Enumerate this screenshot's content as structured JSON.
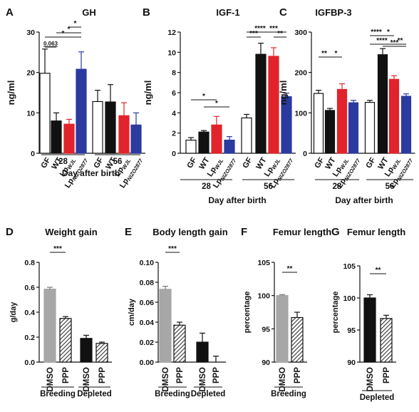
{
  "colors": {
    "white": "#ffffff",
    "black": "#111111",
    "red": "#e2232b",
    "blue": "#2b3a9f",
    "gray": "#a7a7a7",
    "err_red": "#e2232b",
    "err_blue": "#2b3a9f"
  },
  "legend_text": {
    "gf": "GF",
    "wt": "WT",
    "lp": "Lp",
    "wjl": "WJL",
    "nizo": "NIZO2877",
    "dmso": "DMSO",
    "ppp": "PPP"
  },
  "chart_data": [
    {
      "type": "bar",
      "panel_letter": "A",
      "title": "GH",
      "ylabel": "ng/ml",
      "ylim": [
        0,
        30
      ],
      "yticks": [
        "0",
        "10",
        "20",
        "30"
      ],
      "xlabel": "Day after birth",
      "groups": [
        {
          "label": "28",
          "bars": [
            {
              "cat": "GF",
              "value": 19.8,
              "err": 6.0
            },
            {
              "cat": "WT",
              "value": 8.0,
              "err": 2.0
            },
            {
              "cat": "LpWJL",
              "value": 7.2,
              "err": 1.2
            },
            {
              "cat": "LpNIZO2877",
              "value": 20.8,
              "err": 4.3
            }
          ]
        },
        {
          "label": "56",
          "bars": [
            {
              "cat": "GF",
              "value": 12.8,
              "err": 2.8
            },
            {
              "cat": "WT",
              "value": 12.7,
              "err": 4.3
            },
            {
              "cat": "LpWJL",
              "value": 9.3,
              "err": 3.2
            },
            {
              "cat": "LpNIZO2877",
              "value": 7.0,
              "err": 3.0
            }
          ]
        }
      ],
      "significance": [
        {
          "text": "0.063"
        },
        {
          "text": "*"
        },
        {
          "text": "*"
        },
        {
          "text": "*"
        }
      ]
    },
    {
      "type": "bar",
      "panel_letter": "B",
      "title": "IGF-1",
      "ylabel": "ng/ml",
      "ylim": [
        0,
        12
      ],
      "yticks": [
        "0",
        "2",
        "4",
        "6",
        "8",
        "10",
        "12"
      ],
      "xlabel": "Day after birth",
      "groups": [
        {
          "label": "28",
          "bars": [
            {
              "cat": "GF",
              "value": 1.3,
              "err": 0.25
            },
            {
              "cat": "WT",
              "value": 2.1,
              "err": 0.15
            },
            {
              "cat": "LpWJL",
              "value": 2.8,
              "err": 0.85
            },
            {
              "cat": "LpNIZO2877",
              "value": 1.3,
              "err": 0.35
            }
          ]
        },
        {
          "label": "56",
          "bars": [
            {
              "cat": "GF",
              "value": 3.5,
              "err": 0.35
            },
            {
              "cat": "WT",
              "value": 9.8,
              "err": 1.1
            },
            {
              "cat": "LpWJL",
              "value": 9.6,
              "err": 0.85
            },
            {
              "cat": "LpNIZO2877",
              "value": 5.6,
              "err": 0.35
            }
          ]
        }
      ],
      "significance": [
        {
          "text": "*"
        },
        {
          "text": "*"
        },
        {
          "text": "***"
        },
        {
          "text": "****"
        },
        {
          "text": "***"
        },
        {
          "text": "**"
        }
      ]
    },
    {
      "type": "bar",
      "panel_letter": "C",
      "title": "IGFBP-3",
      "ylabel": "ng/ml",
      "ylim": [
        0,
        300
      ],
      "yticks": [
        "0",
        "100",
        "200",
        "300"
      ],
      "xlabel": "Day after birth",
      "groups": [
        {
          "label": "28",
          "bars": [
            {
              "cat": "GF",
              "value": 148,
              "err": 8
            },
            {
              "cat": "WT",
              "value": 106,
              "err": 5
            },
            {
              "cat": "LpWJL",
              "value": 158,
              "err": 14
            },
            {
              "cat": "LpNIZO2877",
              "value": 125,
              "err": 6
            }
          ]
        },
        {
          "label": "56",
          "bars": [
            {
              "cat": "GF",
              "value": 126,
              "err": 5
            },
            {
              "cat": "WT",
              "value": 244,
              "err": 15
            },
            {
              "cat": "LpWJL",
              "value": 183,
              "err": 9
            },
            {
              "cat": "LpNIZO2877",
              "value": 141,
              "err": 6
            }
          ]
        }
      ],
      "significance": [
        {
          "text": "**"
        },
        {
          "text": "*"
        },
        {
          "text": "***"
        },
        {
          "text": "****"
        },
        {
          "text": "*"
        },
        {
          "text": "****"
        },
        {
          "text": "**"
        }
      ]
    },
    {
      "type": "bar",
      "panel_letter": "D",
      "title": "Weight gain",
      "ylabel": "g/day",
      "ylim": [
        0,
        0.8
      ],
      "yticks": [
        "0.0",
        "0.2",
        "0.4",
        "0.6",
        "0.8"
      ],
      "groups": [
        {
          "label": "Breeding",
          "bars": [
            {
              "cat": "DMSO",
              "value": 0.585,
              "err": 0.015
            },
            {
              "cat": "PPP",
              "value": 0.35,
              "err": 0.015
            }
          ]
        },
        {
          "label": "Depleted",
          "bars": [
            {
              "cat": "DMSO",
              "value": 0.19,
              "err": 0.025
            },
            {
              "cat": "PPP",
              "value": 0.15,
              "err": 0.01
            }
          ]
        }
      ],
      "significance": [
        {
          "text": "***"
        }
      ]
    },
    {
      "type": "bar",
      "panel_letter": "E",
      "title": "Body length gain",
      "ylabel": "cm/day",
      "ylim": [
        0,
        0.1
      ],
      "yticks": [
        "0.00",
        "0.02",
        "0.04",
        "0.06",
        "0.08",
        "0.10"
      ],
      "groups": [
        {
          "label": "Breeding",
          "bars": [
            {
              "cat": "DMSO",
              "value": 0.073,
              "err": 0.003
            },
            {
              "cat": "PPP",
              "value": 0.037,
              "err": 0.003
            }
          ]
        },
        {
          "label": "Depleted",
          "bars": [
            {
              "cat": "DMSO",
              "value": 0.02,
              "err": 0.009
            },
            {
              "cat": "PPP",
              "value": 0.0,
              "err": 0.006
            }
          ]
        }
      ],
      "significance": [
        {
          "text": "***"
        }
      ]
    },
    {
      "type": "bar",
      "panel_letter": "F",
      "title": "Femur length",
      "ylabel": "percentage",
      "ylim": [
        90,
        105
      ],
      "yticks": [
        "90",
        "95",
        "100",
        "105"
      ],
      "groups": [
        {
          "label": "Breeding",
          "bars": [
            {
              "cat": "DMSO",
              "value": 100,
              "err": 0.15
            },
            {
              "cat": "PPP",
              "value": 96.7,
              "err": 0.8
            }
          ]
        }
      ],
      "significance": [
        {
          "text": "**"
        }
      ]
    },
    {
      "type": "bar",
      "panel_letter": "G",
      "title": "Femur length",
      "ylabel": "percentage",
      "ylim": [
        90,
        105
      ],
      "yticks": [
        "90",
        "95",
        "100",
        "105"
      ],
      "groups": [
        {
          "label": "Depleted",
          "bars": [
            {
              "cat": "DMSO",
              "value": 100,
              "err": 0.5
            },
            {
              "cat": "PPP",
              "value": 96.8,
              "err": 0.5
            }
          ]
        }
      ],
      "significance": [
        {
          "text": "**"
        }
      ]
    }
  ]
}
